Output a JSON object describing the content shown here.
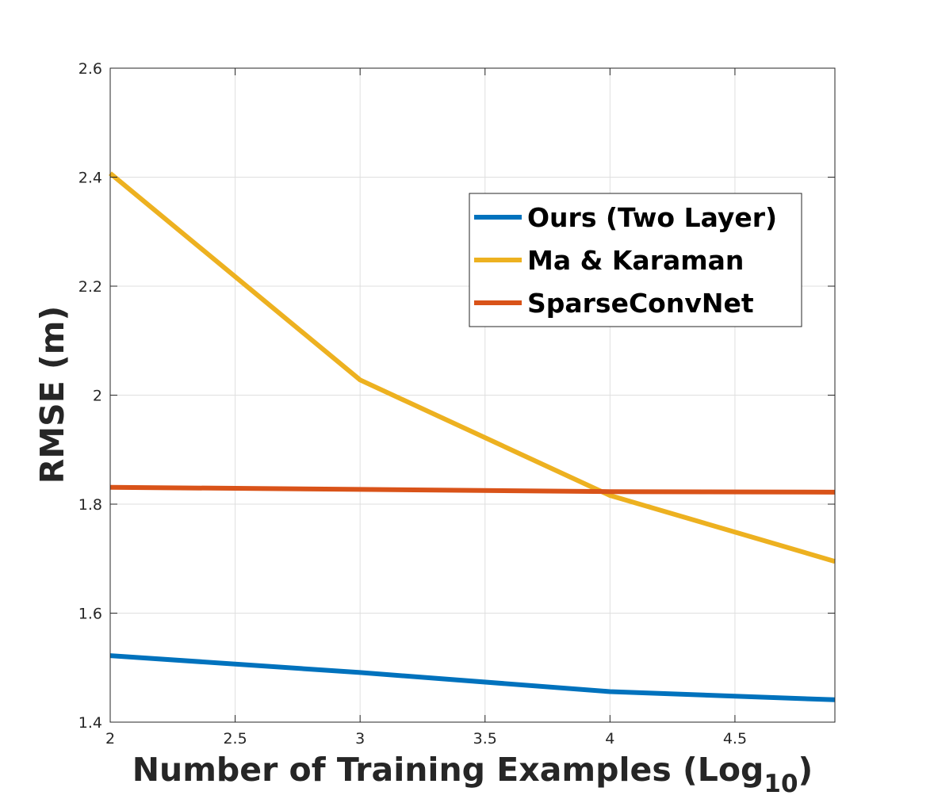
{
  "chart_data": {
    "type": "line",
    "title": "",
    "xlabel": "Number of Training Examples (Log",
    "xlabel_subscript": "10",
    "xlabel_suffix": ")",
    "ylabel": "RMSE (m)",
    "xlim": [
      2,
      4.9
    ],
    "ylim": [
      1.4,
      2.6
    ],
    "xticks": [
      2,
      2.5,
      3,
      3.5,
      4,
      4.5
    ],
    "xtick_labels": [
      "2",
      "2.5",
      "3",
      "3.5",
      "4",
      "4.5"
    ],
    "yticks": [
      1.4,
      1.6,
      1.8,
      2.0,
      2.2,
      2.4,
      2.6
    ],
    "ytick_labels": [
      "1.4",
      "1.6",
      "1.8",
      "2",
      "2.2",
      "2.4",
      "2.6"
    ],
    "grid": true,
    "legend_position": "top-right",
    "series": [
      {
        "name": "Ours (Two Layer)",
        "color": "#0072BD",
        "x": [
          2,
          3,
          4,
          4.9
        ],
        "y": [
          1.522,
          1.491,
          1.456,
          1.441
        ]
      },
      {
        "name": "Ma & Karaman",
        "color": "#EDB120",
        "x": [
          2,
          3,
          4,
          4.9
        ],
        "y": [
          2.407,
          2.028,
          1.816,
          1.695
        ]
      },
      {
        "name": "SparseConvNet",
        "color": "#D95319",
        "x": [
          2,
          3,
          4,
          4.9
        ],
        "y": [
          1.831,
          1.827,
          1.823,
          1.822
        ]
      }
    ]
  }
}
